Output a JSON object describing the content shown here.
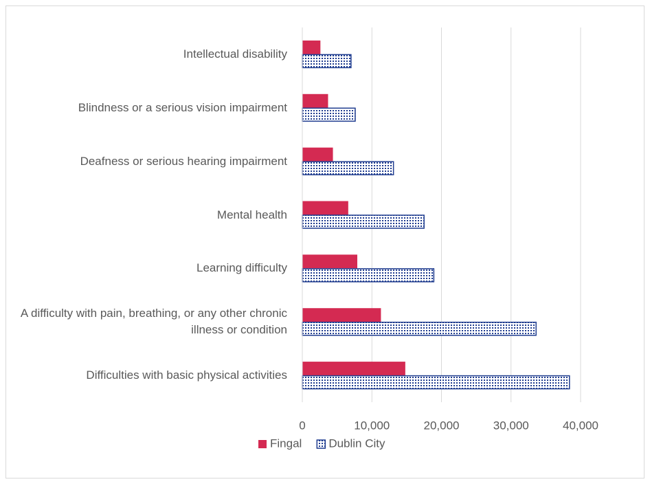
{
  "chart_data": {
    "type": "hbar",
    "categories": [
      "Intellectual disability",
      "Blindness or a serious vision impairment",
      "Deafness or serious hearing impairment",
      "Mental health",
      "Learning difficulty",
      "A difficulty with pain, breathing, or any other chronic illness or condition",
      "Difficulties with basic physical activities"
    ],
    "series": [
      {
        "name": "Fingal",
        "color": "#d42a52",
        "values": [
          2600,
          3700,
          4400,
          6600,
          7900,
          11300,
          14800
        ]
      },
      {
        "name": "Dublin City",
        "color": "#1f3c8f",
        "values": [
          7000,
          7600,
          13100,
          17500,
          18900,
          33600,
          38400
        ]
      }
    ],
    "xlim": [
      0,
      45000
    ],
    "xticks": [
      0,
      {
        "value": 10000,
        "label": "10,000"
      },
      {
        "value": 20000,
        "label": "20,000"
      },
      {
        "value": 30000,
        "label": "30,000"
      },
      {
        "value": 40000,
        "label": "40,000"
      }
    ],
    "grid": true,
    "legend": "bottom"
  }
}
